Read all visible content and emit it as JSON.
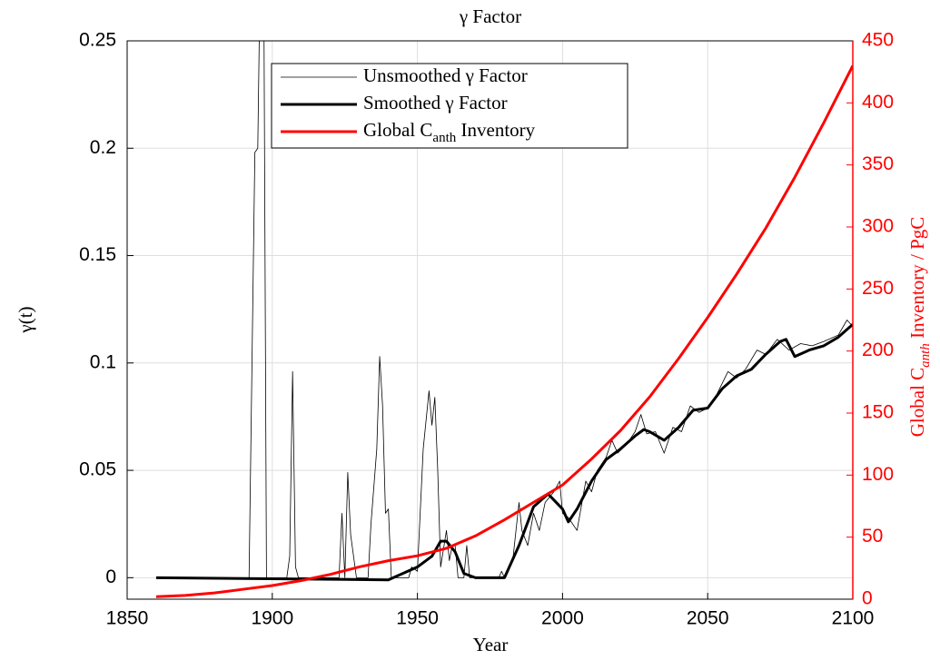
{
  "chart_data": {
    "type": "line",
    "title": "γ Factor",
    "xlabel": "Year",
    "ylabel": "γ(t)",
    "y2label_parts": [
      {
        "text": "Global C"
      },
      {
        "text": "anth",
        "sub": true,
        "italic": true
      },
      {
        "text": " Inventory / PgC"
      }
    ],
    "xlim": [
      1850,
      2100
    ],
    "xticks": [
      1850,
      1900,
      1950,
      2000,
      2050,
      2100
    ],
    "ylim": [
      -0.01,
      0.25
    ],
    "yticks": [
      0,
      0.05,
      0.1,
      0.15,
      0.2,
      0.25
    ],
    "y2lim": [
      0,
      450
    ],
    "y2ticks": [
      0,
      50,
      100,
      150,
      200,
      250,
      300,
      350,
      400,
      450
    ],
    "y2color": "#ff0000",
    "grid": true,
    "legend": "top",
    "series": [
      {
        "name_parts": [
          {
            "text": "Unsmoothed γ Factor"
          }
        ],
        "color": "#000000",
        "width": 0.8,
        "x": [
          1860,
          1892,
          1894,
          1895,
          1896,
          1897,
          1898,
          1905,
          1906,
          1907,
          1908,
          1909,
          1923,
          1924,
          1925,
          1926,
          1927,
          1929,
          1933,
          1934,
          1936,
          1937,
          1938,
          1939,
          1940,
          1941,
          1947,
          1948,
          1950,
          1952,
          1954,
          1955,
          1956,
          1957,
          1958,
          1960,
          1961,
          1962,
          1963,
          1964,
          1966,
          1967,
          1968,
          1978,
          1979,
          1980,
          1983,
          1985,
          1986,
          1988,
          1990,
          1992,
          1994,
          1997,
          1999,
          2000,
          2002,
          2005,
          2008,
          2010,
          2012,
          2015,
          2017,
          2019,
          2022,
          2025,
          2027,
          2029,
          2032,
          2035,
          2038,
          2041,
          2044,
          2047,
          2050,
          2053,
          2057,
          2060,
          2063,
          2067,
          2070,
          2074,
          2078,
          2082,
          2086,
          2090,
          2095,
          2098,
          2100
        ],
        "values": [
          0,
          0,
          0.198,
          0.2,
          0.3,
          0.3,
          0,
          0,
          0.01,
          0.096,
          0.005,
          0,
          0,
          0.03,
          0,
          0.049,
          0.02,
          0,
          0,
          0.025,
          0.06,
          0.103,
          0.08,
          0.03,
          0.032,
          0,
          0,
          0.005,
          0.003,
          0.06,
          0.087,
          0.071,
          0.084,
          0.05,
          0.005,
          0.022,
          0.008,
          0.015,
          0.015,
          0,
          0,
          0.015,
          0,
          0,
          0.003,
          0,
          0.01,
          0.035,
          0.022,
          0.015,
          0.03,
          0.022,
          0.035,
          0.04,
          0.045,
          0.03,
          0.028,
          0.022,
          0.045,
          0.04,
          0.05,
          0.056,
          0.064,
          0.058,
          0.062,
          0.068,
          0.076,
          0.067,
          0.068,
          0.058,
          0.07,
          0.068,
          0.08,
          0.077,
          0.079,
          0.085,
          0.096,
          0.093,
          0.097,
          0.106,
          0.104,
          0.111,
          0.106,
          0.109,
          0.108,
          0.11,
          0.113,
          0.12,
          0.117
        ]
      },
      {
        "name_parts": [
          {
            "text": "Smoothed γ Factor"
          }
        ],
        "color": "#000000",
        "width": 3,
        "x": [
          1860,
          1940,
          1945,
          1950,
          1955,
          1958,
          1960,
          1963,
          1966,
          1970,
          1980,
          1985,
          1990,
          1995,
          2000,
          2002,
          2005,
          2010,
          2015,
          2020,
          2025,
          2028,
          2030,
          2035,
          2040,
          2045,
          2050,
          2055,
          2060,
          2065,
          2070,
          2075,
          2077,
          2080,
          2085,
          2090,
          2095,
          2100
        ],
        "values": [
          0,
          -0.001,
          0.002,
          0.005,
          0.01,
          0.017,
          0.017,
          0.012,
          0.002,
          0,
          0,
          0.015,
          0.033,
          0.039,
          0.032,
          0.026,
          0.032,
          0.045,
          0.055,
          0.06,
          0.066,
          0.069,
          0.068,
          0.064,
          0.07,
          0.078,
          0.079,
          0.088,
          0.094,
          0.097,
          0.104,
          0.11,
          0.111,
          0.103,
          0.106,
          0.108,
          0.112,
          0.118
        ]
      },
      {
        "name_parts": [
          {
            "text": "Global C"
          },
          {
            "text": "anth",
            "sub": true
          },
          {
            "text": " Inventory"
          }
        ],
        "color": "#ff0000",
        "width": 3,
        "axis": "y2",
        "x": [
          1860,
          1870,
          1880,
          1890,
          1900,
          1910,
          1920,
          1930,
          1940,
          1950,
          1960,
          1970,
          1980,
          1990,
          2000,
          2010,
          2020,
          2030,
          2040,
          2050,
          2060,
          2070,
          2080,
          2090,
          2100
        ],
        "values": [
          2,
          3,
          5,
          8,
          11,
          15,
          20,
          26,
          31,
          35,
          41,
          51,
          64,
          78,
          92,
          113,
          136,
          163,
          194,
          227,
          262,
          299,
          340,
          384,
          430
        ]
      }
    ]
  }
}
